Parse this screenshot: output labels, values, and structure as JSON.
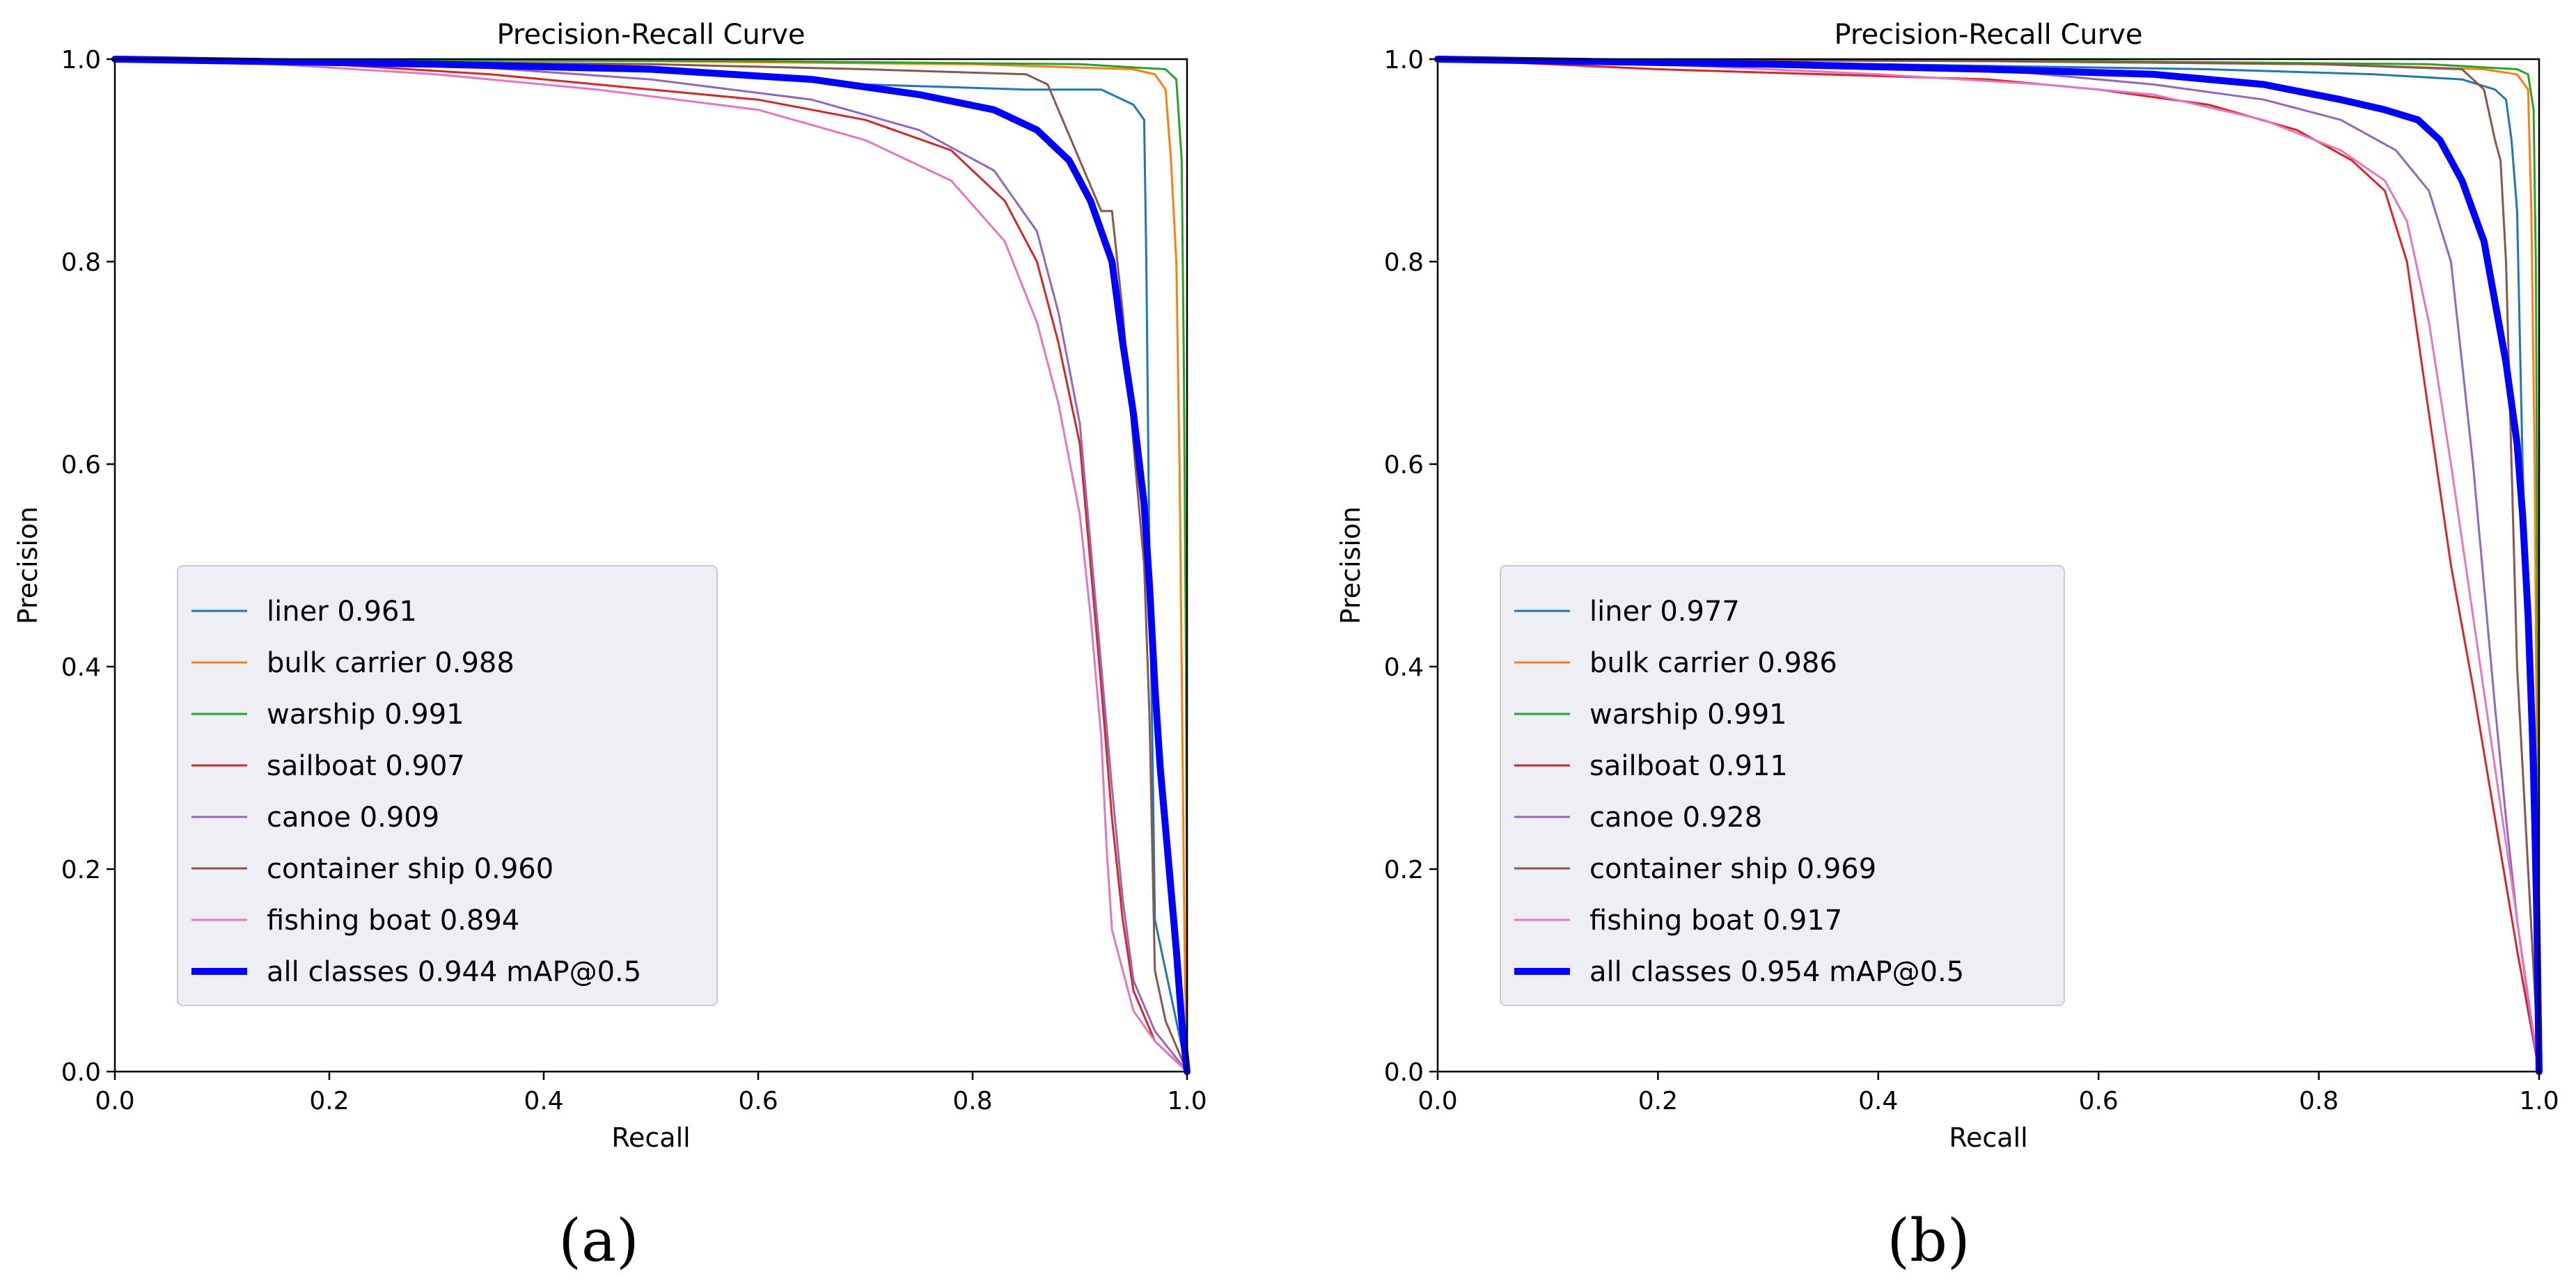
{
  "chart_data": [
    {
      "type": "line",
      "title": "Precision-Recall Curve",
      "xlabel": "Recall",
      "ylabel": "Precision",
      "xlim": [
        0,
        1
      ],
      "ylim": [
        0,
        1
      ],
      "x_ticks": [
        "0.0",
        "0.2",
        "0.4",
        "0.6",
        "0.8",
        "1.0"
      ],
      "y_ticks": [
        "0.0",
        "0.2",
        "0.4",
        "0.6",
        "0.8",
        "1.0"
      ],
      "grid": false,
      "legend_position": "lower-left",
      "caption": "(a)",
      "series": [
        {
          "name": "liner 0.961",
          "color": "#1f77b4",
          "width": 3,
          "points": [
            [
              0,
              1
            ],
            [
              0.3,
              0.995
            ],
            [
              0.5,
              0.99
            ],
            [
              0.7,
              0.975
            ],
            [
              0.85,
              0.97
            ],
            [
              0.92,
              0.97
            ],
            [
              0.95,
              0.955
            ],
            [
              0.96,
              0.94
            ],
            [
              0.962,
              0.8
            ],
            [
              0.965,
              0.5
            ],
            [
              0.968,
              0.3
            ],
            [
              0.97,
              0.15
            ],
            [
              0.98,
              0.1
            ],
            [
              1,
              0
            ]
          ]
        },
        {
          "name": "bulk carrier 0.988",
          "color": "#ff7f0e",
          "width": 3,
          "points": [
            [
              0,
              1
            ],
            [
              0.5,
              0.998
            ],
            [
              0.8,
              0.995
            ],
            [
              0.95,
              0.99
            ],
            [
              0.97,
              0.985
            ],
            [
              0.98,
              0.97
            ],
            [
              0.985,
              0.9
            ],
            [
              0.99,
              0.8
            ],
            [
              0.993,
              0.6
            ],
            [
              0.996,
              0.3
            ],
            [
              0.998,
              0.1
            ],
            [
              1,
              0
            ]
          ]
        },
        {
          "name": "warship 0.991",
          "color": "#2ca02c",
          "width": 3,
          "points": [
            [
              0,
              1
            ],
            [
              0.6,
              0.998
            ],
            [
              0.9,
              0.995
            ],
            [
              0.98,
              0.99
            ],
            [
              0.99,
              0.98
            ],
            [
              0.995,
              0.9
            ],
            [
              0.997,
              0.7
            ],
            [
              0.999,
              0.4
            ],
            [
              1,
              0.1
            ],
            [
              1,
              0
            ]
          ]
        },
        {
          "name": "sailboat 0.907",
          "color": "#d62728",
          "width": 3,
          "points": [
            [
              0,
              1
            ],
            [
              0.2,
              0.995
            ],
            [
              0.35,
              0.985
            ],
            [
              0.45,
              0.975
            ],
            [
              0.6,
              0.96
            ],
            [
              0.7,
              0.94
            ],
            [
              0.78,
              0.91
            ],
            [
              0.83,
              0.86
            ],
            [
              0.86,
              0.8
            ],
            [
              0.88,
              0.72
            ],
            [
              0.9,
              0.62
            ],
            [
              0.91,
              0.5
            ],
            [
              0.92,
              0.38
            ],
            [
              0.93,
              0.25
            ],
            [
              0.94,
              0.15
            ],
            [
              0.95,
              0.08
            ],
            [
              0.97,
              0.03
            ],
            [
              1,
              0
            ]
          ]
        },
        {
          "name": "canoe 0.909",
          "color": "#9467bd",
          "width": 3,
          "points": [
            [
              0,
              1
            ],
            [
              0.3,
              0.995
            ],
            [
              0.5,
              0.98
            ],
            [
              0.65,
              0.96
            ],
            [
              0.75,
              0.93
            ],
            [
              0.82,
              0.89
            ],
            [
              0.86,
              0.83
            ],
            [
              0.88,
              0.75
            ],
            [
              0.9,
              0.64
            ],
            [
              0.91,
              0.52
            ],
            [
              0.92,
              0.4
            ],
            [
              0.93,
              0.28
            ],
            [
              0.94,
              0.17
            ],
            [
              0.95,
              0.09
            ],
            [
              0.97,
              0.04
            ],
            [
              1,
              0
            ]
          ]
        },
        {
          "name": "container ship 0.960",
          "color": "#8c564b",
          "width": 3,
          "points": [
            [
              0,
              1
            ],
            [
              0.5,
              0.995
            ],
            [
              0.7,
              0.99
            ],
            [
              0.85,
              0.985
            ],
            [
              0.87,
              0.975
            ],
            [
              0.88,
              0.95
            ],
            [
              0.9,
              0.9
            ],
            [
              0.92,
              0.85
            ],
            [
              0.93,
              0.85
            ],
            [
              0.94,
              0.75
            ],
            [
              0.95,
              0.62
            ],
            [
              0.96,
              0.5
            ],
            [
              0.965,
              0.35
            ],
            [
              0.97,
              0.1
            ],
            [
              0.98,
              0.05
            ],
            [
              1,
              0
            ]
          ]
        },
        {
          "name": "fishing boat 0.894",
          "color": "#e377c2",
          "width": 3,
          "points": [
            [
              0,
              1
            ],
            [
              0.15,
              0.995
            ],
            [
              0.3,
              0.985
            ],
            [
              0.45,
              0.97
            ],
            [
              0.6,
              0.95
            ],
            [
              0.7,
              0.92
            ],
            [
              0.78,
              0.88
            ],
            [
              0.83,
              0.82
            ],
            [
              0.86,
              0.74
            ],
            [
              0.88,
              0.66
            ],
            [
              0.9,
              0.55
            ],
            [
              0.91,
              0.45
            ],
            [
              0.92,
              0.33
            ],
            [
              0.925,
              0.22
            ],
            [
              0.93,
              0.14
            ],
            [
              0.95,
              0.06
            ],
            [
              0.97,
              0.03
            ],
            [
              1,
              0
            ]
          ]
        },
        {
          "name": "all classes 0.944 mAP@0.5",
          "color": "#0000ff",
          "width": 10,
          "points": [
            [
              0,
              1
            ],
            [
              0.3,
              0.995
            ],
            [
              0.5,
              0.99
            ],
            [
              0.65,
              0.98
            ],
            [
              0.75,
              0.965
            ],
            [
              0.82,
              0.95
            ],
            [
              0.86,
              0.93
            ],
            [
              0.89,
              0.9
            ],
            [
              0.91,
              0.86
            ],
            [
              0.93,
              0.8
            ],
            [
              0.94,
              0.72
            ],
            [
              0.95,
              0.65
            ],
            [
              0.96,
              0.56
            ],
            [
              0.965,
              0.48
            ],
            [
              0.97,
              0.38
            ],
            [
              0.975,
              0.3
            ],
            [
              0.98,
              0.24
            ],
            [
              0.985,
              0.18
            ],
            [
              0.99,
              0.12
            ],
            [
              0.995,
              0.05
            ],
            [
              1,
              0
            ]
          ]
        }
      ]
    },
    {
      "type": "line",
      "title": "Precision-Recall Curve",
      "xlabel": "Recall",
      "ylabel": "Precision",
      "xlim": [
        0,
        1
      ],
      "ylim": [
        0,
        1
      ],
      "x_ticks": [
        "0.0",
        "0.2",
        "0.4",
        "0.6",
        "0.8",
        "1.0"
      ],
      "y_ticks": [
        "0.0",
        "0.2",
        "0.4",
        "0.6",
        "0.8",
        "1.0"
      ],
      "grid": false,
      "legend_position": "lower-left",
      "caption": "(b)",
      "series": [
        {
          "name": "liner 0.977",
          "color": "#1f77b4",
          "width": 3,
          "points": [
            [
              0,
              1
            ],
            [
              0.4,
              0.995
            ],
            [
              0.7,
              0.99
            ],
            [
              0.85,
              0.985
            ],
            [
              0.93,
              0.98
            ],
            [
              0.96,
              0.97
            ],
            [
              0.97,
              0.96
            ],
            [
              0.975,
              0.92
            ],
            [
              0.98,
              0.85
            ],
            [
              0.985,
              0.6
            ],
            [
              0.99,
              0.4
            ],
            [
              0.995,
              0.2
            ],
            [
              1,
              0
            ]
          ]
        },
        {
          "name": "bulk carrier 0.986",
          "color": "#ff7f0e",
          "width": 3,
          "points": [
            [
              0,
              1
            ],
            [
              0.5,
              0.998
            ],
            [
              0.8,
              0.995
            ],
            [
              0.95,
              0.99
            ],
            [
              0.98,
              0.985
            ],
            [
              0.99,
              0.97
            ],
            [
              0.993,
              0.85
            ],
            [
              0.996,
              0.6
            ],
            [
              0.998,
              0.3
            ],
            [
              1,
              0
            ]
          ]
        },
        {
          "name": "warship 0.991",
          "color": "#2ca02c",
          "width": 3,
          "points": [
            [
              0,
              1
            ],
            [
              0.6,
              0.998
            ],
            [
              0.9,
              0.995
            ],
            [
              0.98,
              0.99
            ],
            [
              0.99,
              0.985
            ],
            [
              0.995,
              0.95
            ],
            [
              0.997,
              0.8
            ],
            [
              0.999,
              0.4
            ],
            [
              1,
              0.1
            ],
            [
              1,
              0
            ]
          ]
        },
        {
          "name": "sailboat 0.911",
          "color": "#d62728",
          "width": 3,
          "points": [
            [
              0,
              1
            ],
            [
              0.2,
              0.99
            ],
            [
              0.35,
              0.985
            ],
            [
              0.5,
              0.98
            ],
            [
              0.6,
              0.97
            ],
            [
              0.7,
              0.955
            ],
            [
              0.78,
              0.93
            ],
            [
              0.83,
              0.9
            ],
            [
              0.86,
              0.87
            ],
            [
              0.88,
              0.8
            ],
            [
              0.9,
              0.65
            ],
            [
              0.92,
              0.5
            ],
            [
              0.94,
              0.38
            ],
            [
              0.96,
              0.25
            ],
            [
              0.98,
              0.12
            ],
            [
              1,
              0
            ]
          ]
        },
        {
          "name": "canoe 0.928",
          "color": "#9467bd",
          "width": 3,
          "points": [
            [
              0,
              1
            ],
            [
              0.3,
              0.995
            ],
            [
              0.5,
              0.99
            ],
            [
              0.65,
              0.975
            ],
            [
              0.75,
              0.96
            ],
            [
              0.82,
              0.94
            ],
            [
              0.87,
              0.91
            ],
            [
              0.9,
              0.87
            ],
            [
              0.92,
              0.8
            ],
            [
              0.93,
              0.7
            ],
            [
              0.94,
              0.6
            ],
            [
              0.95,
              0.48
            ],
            [
              0.96,
              0.36
            ],
            [
              0.97,
              0.25
            ],
            [
              0.98,
              0.15
            ],
            [
              0.99,
              0.07
            ],
            [
              1,
              0
            ]
          ]
        },
        {
          "name": "container ship 0.969",
          "color": "#8c564b",
          "width": 3,
          "points": [
            [
              0,
              1
            ],
            [
              0.5,
              0.998
            ],
            [
              0.8,
              0.995
            ],
            [
              0.93,
              0.99
            ],
            [
              0.95,
              0.97
            ],
            [
              0.96,
              0.92
            ],
            [
              0.965,
              0.9
            ],
            [
              0.97,
              0.8
            ],
            [
              0.975,
              0.6
            ],
            [
              0.98,
              0.4
            ],
            [
              0.99,
              0.2
            ],
            [
              1,
              0
            ]
          ]
        },
        {
          "name": "fishing boat 0.917",
          "color": "#e377c2",
          "width": 3,
          "points": [
            [
              0,
              1
            ],
            [
              0.2,
              0.995
            ],
            [
              0.4,
              0.985
            ],
            [
              0.55,
              0.975
            ],
            [
              0.65,
              0.965
            ],
            [
              0.75,
              0.94
            ],
            [
              0.82,
              0.91
            ],
            [
              0.86,
              0.88
            ],
            [
              0.88,
              0.84
            ],
            [
              0.9,
              0.74
            ],
            [
              0.92,
              0.6
            ],
            [
              0.94,
              0.45
            ],
            [
              0.96,
              0.3
            ],
            [
              0.98,
              0.15
            ],
            [
              1,
              0
            ]
          ]
        },
        {
          "name": "all classes 0.954 mAP@0.5",
          "color": "#0000ff",
          "width": 10,
          "points": [
            [
              0,
              1
            ],
            [
              0.3,
              0.995
            ],
            [
              0.5,
              0.99
            ],
            [
              0.65,
              0.985
            ],
            [
              0.75,
              0.975
            ],
            [
              0.82,
              0.96
            ],
            [
              0.86,
              0.95
            ],
            [
              0.89,
              0.94
            ],
            [
              0.91,
              0.92
            ],
            [
              0.93,
              0.88
            ],
            [
              0.95,
              0.82
            ],
            [
              0.96,
              0.76
            ],
            [
              0.97,
              0.7
            ],
            [
              0.98,
              0.62
            ],
            [
              0.985,
              0.55
            ],
            [
              0.99,
              0.45
            ],
            [
              0.995,
              0.3
            ],
            [
              0.998,
              0.15
            ],
            [
              1,
              0
            ]
          ]
        }
      ]
    }
  ]
}
